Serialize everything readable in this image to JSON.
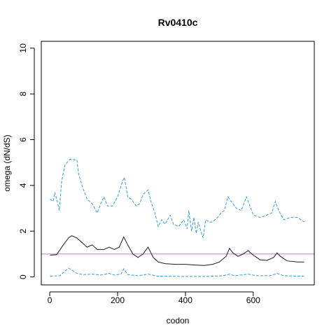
{
  "chart_data": {
    "type": "line",
    "title": "Rv0410c",
    "xlabel": "codon",
    "ylabel": "omega (dN/dS)",
    "xlim": [
      -25,
      780
    ],
    "ylim": [
      -0.35,
      10.3
    ],
    "xticks": [
      0,
      200,
      400,
      600
    ],
    "yticks": [
      0,
      2,
      4,
      6,
      8,
      10
    ],
    "grid": false,
    "reference_line": {
      "y": 1,
      "color": "#c77cc7"
    },
    "series": [
      {
        "role": "median",
        "color": "#1a1a1a",
        "dash": "solid",
        "points": [
          [
            1,
            0.95
          ],
          [
            20,
            0.97
          ],
          [
            40,
            1.4
          ],
          [
            55,
            1.7
          ],
          [
            65,
            1.8
          ],
          [
            80,
            1.7
          ],
          [
            95,
            1.5
          ],
          [
            110,
            1.3
          ],
          [
            125,
            1.4
          ],
          [
            140,
            1.2
          ],
          [
            160,
            1.2
          ],
          [
            175,
            1.3
          ],
          [
            190,
            1.2
          ],
          [
            205,
            1.3
          ],
          [
            218,
            1.75
          ],
          [
            230,
            1.4
          ],
          [
            245,
            1.0
          ],
          [
            260,
            0.85
          ],
          [
            275,
            1.0
          ],
          [
            290,
            1.3
          ],
          [
            305,
            0.85
          ],
          [
            320,
            0.65
          ],
          [
            340,
            0.58
          ],
          [
            370,
            0.55
          ],
          [
            400,
            0.55
          ],
          [
            430,
            0.52
          ],
          [
            455,
            0.5
          ],
          [
            480,
            0.55
          ],
          [
            500,
            0.65
          ],
          [
            520,
            0.9
          ],
          [
            530,
            1.25
          ],
          [
            540,
            1.05
          ],
          [
            555,
            0.9
          ],
          [
            570,
            1.0
          ],
          [
            585,
            1.15
          ],
          [
            600,
            0.95
          ],
          [
            620,
            0.75
          ],
          [
            640,
            0.72
          ],
          [
            660,
            0.85
          ],
          [
            670,
            1.05
          ],
          [
            680,
            0.9
          ],
          [
            700,
            0.7
          ],
          [
            730,
            0.65
          ],
          [
            750,
            0.65
          ]
        ]
      },
      {
        "role": "upper",
        "color": "#3a9ad9",
        "dash": "dashed",
        "points": [
          [
            1,
            3.4
          ],
          [
            10,
            3.3
          ],
          [
            15,
            3.7
          ],
          [
            22,
            3.3
          ],
          [
            28,
            2.9
          ],
          [
            35,
            4.2
          ],
          [
            45,
            4.9
          ],
          [
            60,
            5.15
          ],
          [
            80,
            5.1
          ],
          [
            85,
            4.5
          ],
          [
            95,
            4.0
          ],
          [
            110,
            3.4
          ],
          [
            125,
            3.2
          ],
          [
            140,
            2.8
          ],
          [
            150,
            3.2
          ],
          [
            160,
            3.5
          ],
          [
            170,
            3.1
          ],
          [
            185,
            3.1
          ],
          [
            200,
            3.5
          ],
          [
            215,
            4.2
          ],
          [
            220,
            4.35
          ],
          [
            230,
            3.5
          ],
          [
            240,
            3.4
          ],
          [
            255,
            3.1
          ],
          [
            265,
            3.2
          ],
          [
            275,
            3.6
          ],
          [
            290,
            3.8
          ],
          [
            300,
            3.2
          ],
          [
            310,
            2.8
          ],
          [
            320,
            2.2
          ],
          [
            330,
            2.5
          ],
          [
            340,
            2.3
          ],
          [
            355,
            2.7
          ],
          [
            365,
            2.3
          ],
          [
            380,
            2.2
          ],
          [
            395,
            2.5
          ],
          [
            405,
            2.1
          ],
          [
            410,
            2.9
          ],
          [
            418,
            2.0
          ],
          [
            425,
            2.6
          ],
          [
            432,
            1.9
          ],
          [
            438,
            2.4
          ],
          [
            445,
            2.0
          ],
          [
            452,
            1.7
          ],
          [
            460,
            2.5
          ],
          [
            470,
            2.4
          ],
          [
            480,
            2.4
          ],
          [
            495,
            2.6
          ],
          [
            505,
            2.8
          ],
          [
            515,
            2.9
          ],
          [
            525,
            3.5
          ],
          [
            535,
            3.3
          ],
          [
            550,
            3.0
          ],
          [
            565,
            2.9
          ],
          [
            580,
            3.5
          ],
          [
            590,
            3.1
          ],
          [
            600,
            2.7
          ],
          [
            620,
            2.6
          ],
          [
            640,
            2.7
          ],
          [
            655,
            2.8
          ],
          [
            665,
            3.3
          ],
          [
            675,
            2.9
          ],
          [
            690,
            2.5
          ],
          [
            710,
            2.6
          ],
          [
            730,
            2.6
          ],
          [
            750,
            2.4
          ]
        ]
      },
      {
        "role": "lower",
        "color": "#3a9ad9",
        "dash": "dashed",
        "points": [
          [
            1,
            0.03
          ],
          [
            30,
            0.05
          ],
          [
            45,
            0.25
          ],
          [
            55,
            0.38
          ],
          [
            65,
            0.3
          ],
          [
            80,
            0.15
          ],
          [
            100,
            0.1
          ],
          [
            125,
            0.12
          ],
          [
            150,
            0.08
          ],
          [
            175,
            0.15
          ],
          [
            190,
            0.08
          ],
          [
            210,
            0.12
          ],
          [
            218,
            0.35
          ],
          [
            230,
            0.1
          ],
          [
            260,
            0.05
          ],
          [
            290,
            0.12
          ],
          [
            320,
            0.03
          ],
          [
            400,
            0.02
          ],
          [
            460,
            0.02
          ],
          [
            510,
            0.05
          ],
          [
            530,
            0.12
          ],
          [
            545,
            0.05
          ],
          [
            585,
            0.12
          ],
          [
            610,
            0.05
          ],
          [
            650,
            0.05
          ],
          [
            670,
            0.15
          ],
          [
            690,
            0.05
          ],
          [
            750,
            0.03
          ]
        ]
      }
    ]
  }
}
